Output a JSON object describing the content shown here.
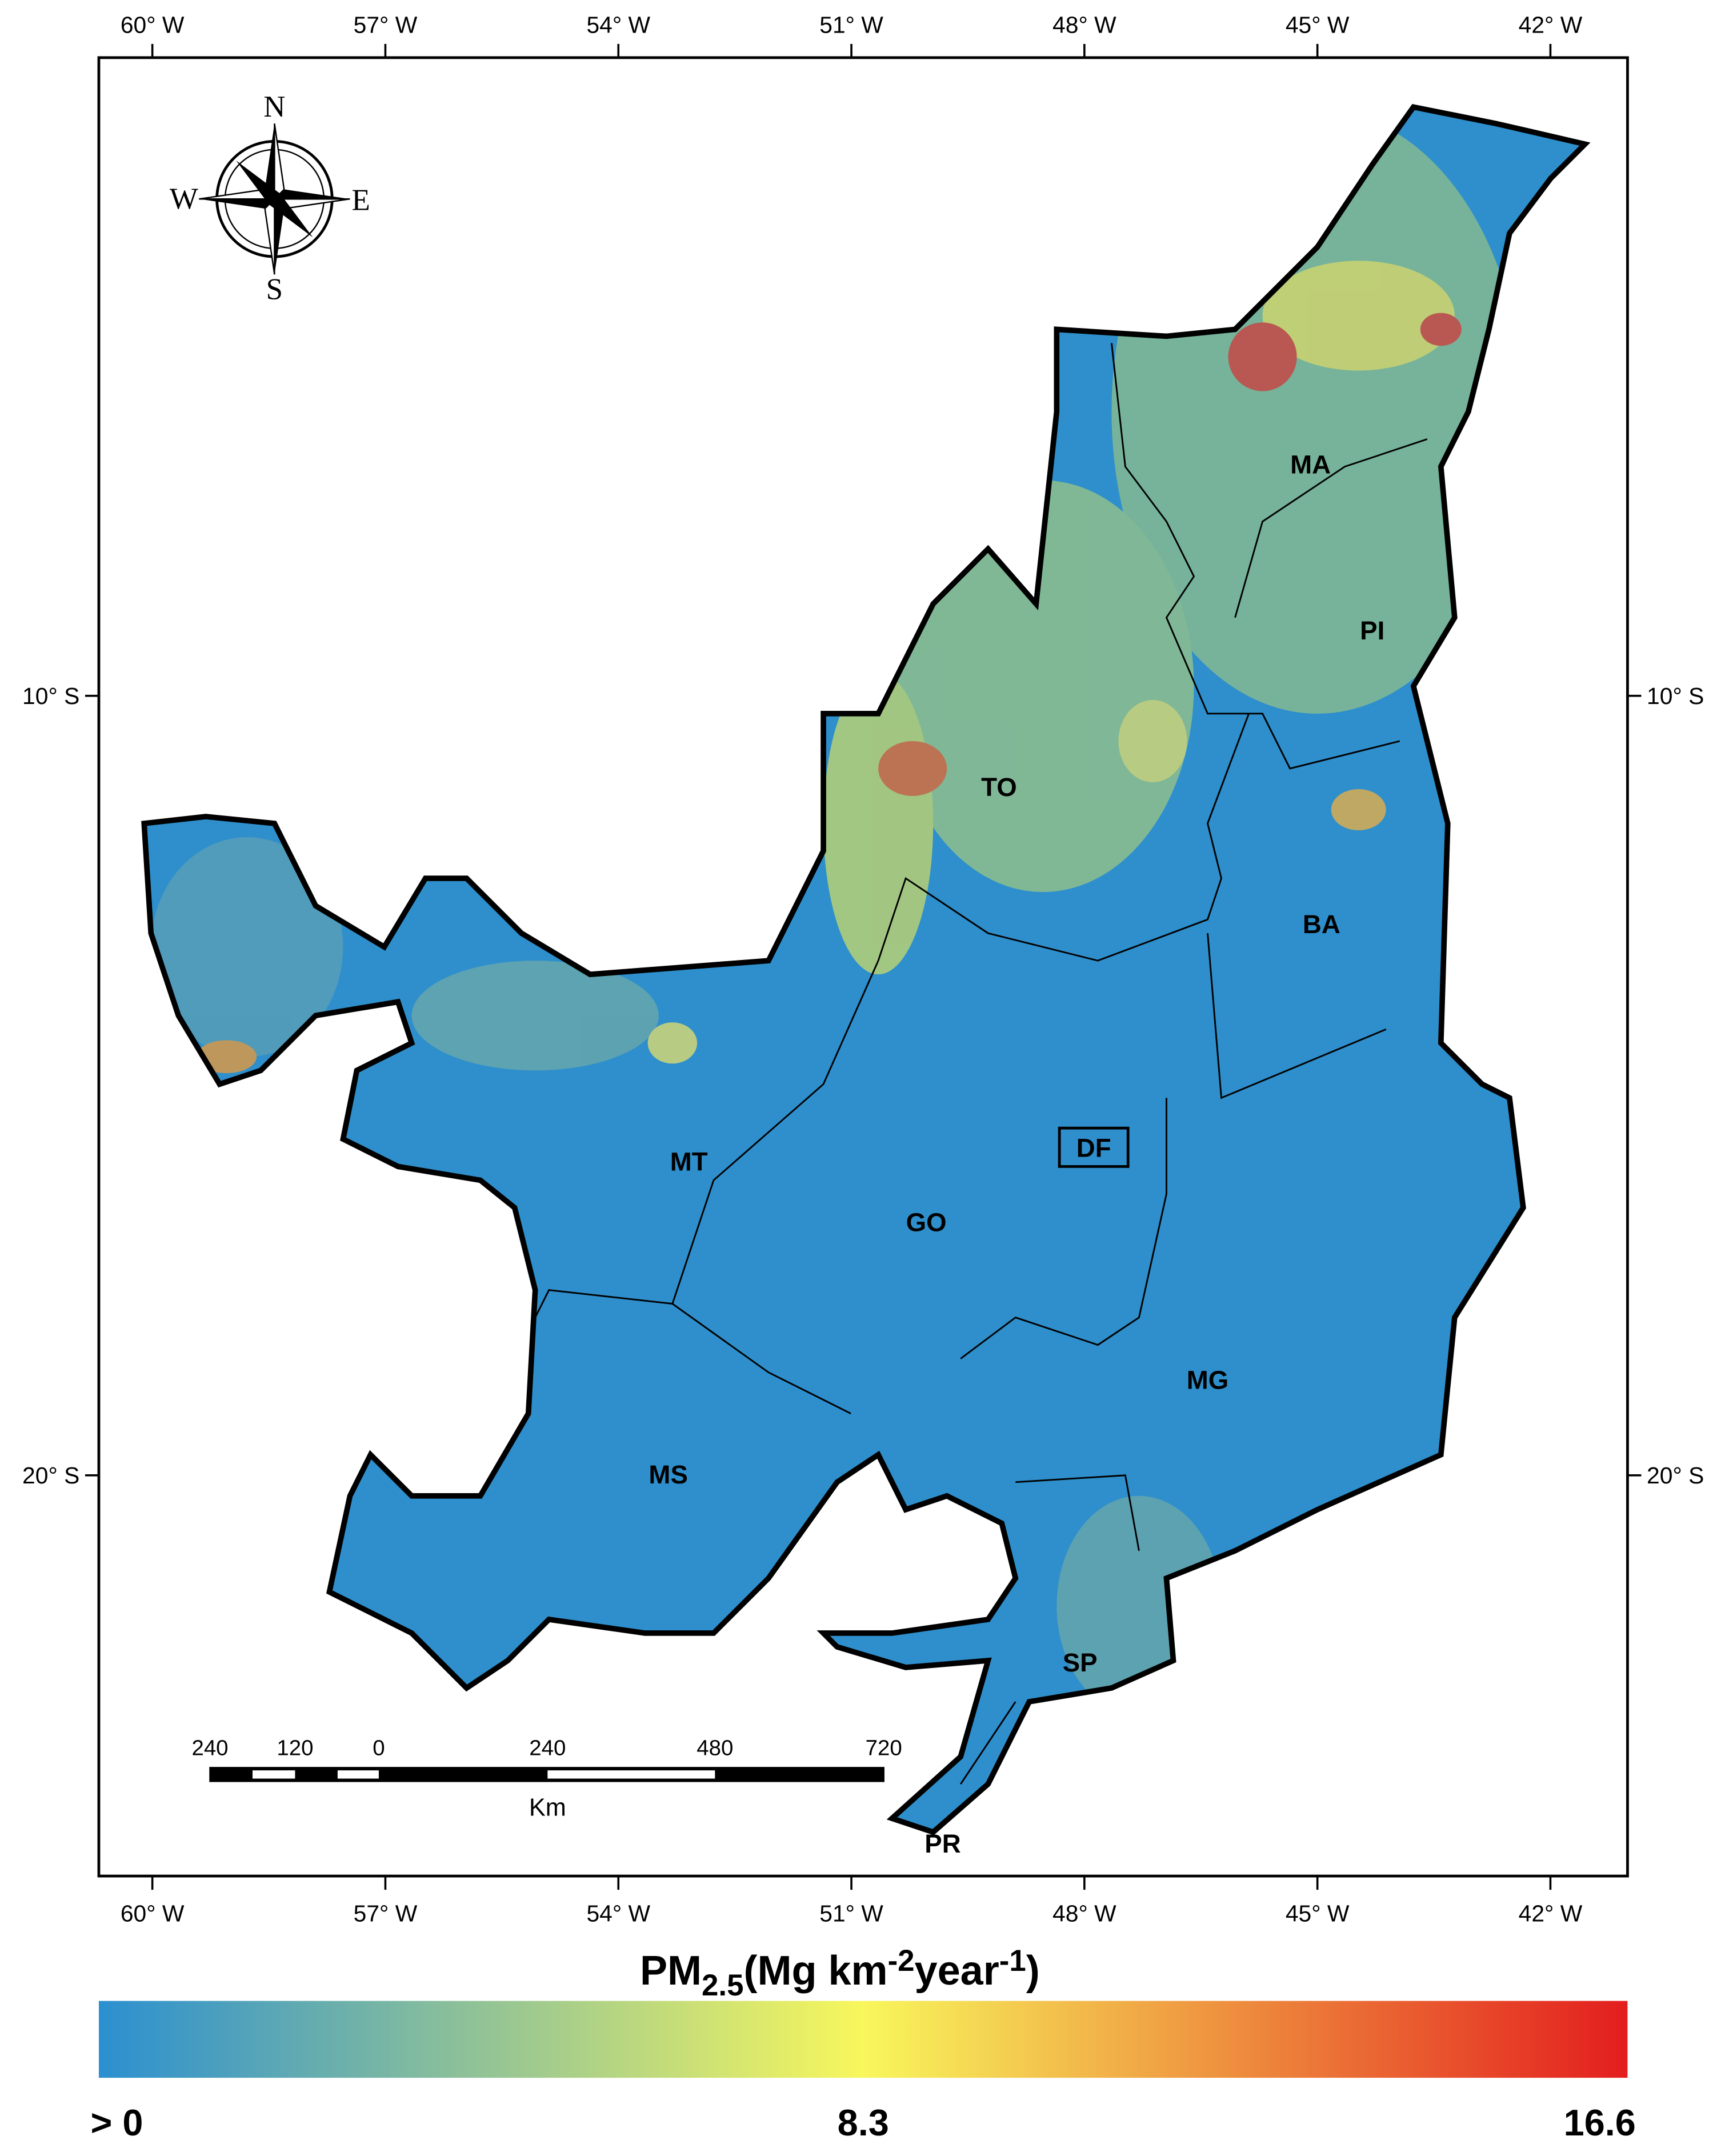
{
  "map": {
    "lon_ticks": [
      {
        "value": -60,
        "label": "60° W"
      },
      {
        "value": -57,
        "label": "57° W"
      },
      {
        "value": -54,
        "label": "54° W"
      },
      {
        "value": -51,
        "label": "51° W"
      },
      {
        "value": -48,
        "label": "48° W"
      },
      {
        "value": -45,
        "label": "45° W"
      },
      {
        "value": -42,
        "label": "42° W"
      }
    ],
    "lat_ticks": [
      {
        "value": -10,
        "label": "10° S"
      },
      {
        "value": -20,
        "label": "20° S"
      }
    ],
    "states": [
      "MA",
      "PI",
      "TO",
      "BA",
      "MT",
      "DF",
      "GO",
      "MG",
      "MS",
      "SP",
      "PR"
    ],
    "compass": [
      "N",
      "E",
      "S",
      "W"
    ],
    "scale_bar": {
      "labels": [
        "240",
        "120",
        "0",
        "240",
        "480",
        "720"
      ],
      "unit": "Km"
    }
  },
  "colorbar": {
    "title": [
      "PM",
      "2.5",
      "(Mg km",
      "-2",
      "year",
      "-1",
      ")"
    ],
    "lim": [
      0,
      16.6
    ],
    "ticks": [
      {
        "value": 0,
        "label": "> 0"
      },
      8.3,
      16.6
    ],
    "colors": [
      "#2b8fd0",
      "#f8f75c",
      "#e31e1e"
    ]
  }
}
